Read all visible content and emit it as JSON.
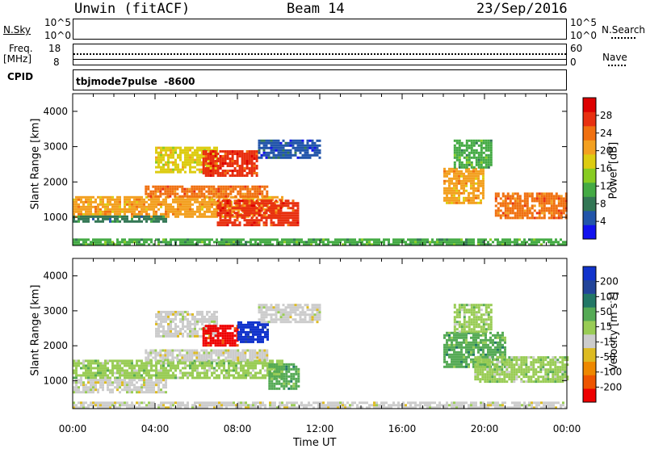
{
  "header": {
    "station": "Unwin (fitACF)",
    "beam": "Beam 14",
    "date": "23/Sep/2016"
  },
  "panels": {
    "nsky": {
      "label": "N.Sky",
      "ticks": [
        "10^5",
        "10^0"
      ],
      "right_label": "N.Search",
      "right_ticks": [
        "10^5",
        "10^0"
      ]
    },
    "freq": {
      "label_line1": "Freq.",
      "label_line2": "[MHz]",
      "ticks": [
        "18",
        "8"
      ],
      "right_label": "Nave",
      "right_ticks": [
        "60",
        "0"
      ]
    },
    "cpid": {
      "label": "CPID",
      "mode": "tbjmode7pulse",
      "code": "-8600"
    }
  },
  "colors": {
    "power_scale": [
      "#1111ee",
      "#2255aa",
      "#337755",
      "#44aa44",
      "#88cc22",
      "#ddcc11",
      "#f3a020",
      "#f07010",
      "#e83010",
      "#dd0000"
    ],
    "velocity_scale": [
      "#ee0000",
      "#ee5500",
      "#ee8800",
      "#ddbb22",
      "#cccccc",
      "#99cc55",
      "#55aa55",
      "#227766",
      "#224499",
      "#1133cc"
    ]
  },
  "chart_data": [
    {
      "type": "heatmap",
      "title": "Power",
      "xlabel": "Time UT",
      "ylabel": "Slant Range [km]",
      "x_ticks": [
        "00:00",
        "04:00",
        "08:00",
        "12:00",
        "16:00",
        "20:00",
        "00:00"
      ],
      "xlim_hours": [
        0,
        24
      ],
      "y_ticks": [
        1000,
        2000,
        3000,
        4000
      ],
      "ylim": [
        200,
        4500
      ],
      "colorbar": {
        "label": "Power [dB]",
        "ticks": [
          4,
          8,
          12,
          16,
          20,
          24,
          28
        ],
        "range": [
          0,
          32
        ]
      },
      "regions": [
        {
          "t0": 0.0,
          "t1": 10.2,
          "r0": 1050,
          "r1": 1600,
          "value": 22
        },
        {
          "t0": 0.0,
          "t1": 4.5,
          "r0": 900,
          "r1": 1050,
          "value": 8
        },
        {
          "t0": 3.5,
          "t1": 9.5,
          "r0": 1600,
          "r1": 1900,
          "value": 24
        },
        {
          "t0": 4.0,
          "t1": 7.0,
          "r0": 2300,
          "r1": 3000,
          "value": 16
        },
        {
          "t0": 6.3,
          "t1": 9.0,
          "r0": 2200,
          "r1": 2900,
          "value": 28
        },
        {
          "t0": 7.0,
          "t1": 11.0,
          "r0": 750,
          "r1": 1500,
          "value": 26
        },
        {
          "t0": 9.0,
          "t1": 12.0,
          "r0": 2700,
          "r1": 3200,
          "value": 6
        },
        {
          "t0": 18.0,
          "t1": 20.0,
          "r0": 1400,
          "r1": 2400,
          "value": 20
        },
        {
          "t0": 18.5,
          "t1": 20.3,
          "r0": 2400,
          "r1": 3200,
          "value": 10
        },
        {
          "t0": 20.5,
          "t1": 24.0,
          "r0": 1000,
          "r1": 1700,
          "value": 24
        },
        {
          "t0": 0.0,
          "t1": 24.0,
          "r0": 200,
          "r1": 400,
          "value": 12
        }
      ]
    },
    {
      "type": "heatmap",
      "title": "Velocity",
      "xlabel": "Time UT",
      "ylabel": "Slant Range [km]",
      "x_ticks": [
        "00:00",
        "04:00",
        "08:00",
        "12:00",
        "16:00",
        "20:00",
        "00:00"
      ],
      "xlim_hours": [
        0,
        24
      ],
      "y_ticks": [
        1000,
        2000,
        3000,
        4000
      ],
      "ylim": [
        200,
        4500
      ],
      "colorbar": {
        "label": "Velocity [m s^-1]",
        "ticks": [
          200,
          100,
          50,
          15,
          -15,
          -50,
          -100,
          -200
        ],
        "range": [
          -250,
          250
        ]
      },
      "regions": [
        {
          "t0": 0.0,
          "t1": 10.2,
          "r0": 1050,
          "r1": 1600,
          "value": 0
        },
        {
          "t0": 0.0,
          "t1": 4.5,
          "r0": 700,
          "r1": 1050,
          "value": -20
        },
        {
          "t0": 3.5,
          "t1": 9.5,
          "r0": 1600,
          "r1": 1900,
          "value": -20
        },
        {
          "t0": 4.0,
          "t1": 7.0,
          "r0": 2300,
          "r1": 3000,
          "value": -30
        },
        {
          "t0": 6.3,
          "t1": 8.0,
          "r0": 2000,
          "r1": 2600,
          "value": -220
        },
        {
          "t0": 8.0,
          "t1": 9.5,
          "r0": 2100,
          "r1": 2700,
          "value": 220
        },
        {
          "t0": 9.5,
          "t1": 11.0,
          "r0": 750,
          "r1": 1500,
          "value": 50
        },
        {
          "t0": 9.0,
          "t1": 12.0,
          "r0": 2700,
          "r1": 3200,
          "value": -20
        },
        {
          "t0": 18.0,
          "t1": 21.0,
          "r0": 1400,
          "r1": 2400,
          "value": 60
        },
        {
          "t0": 18.5,
          "t1": 20.3,
          "r0": 2400,
          "r1": 3200,
          "value": 40
        },
        {
          "t0": 19.5,
          "t1": 24.0,
          "r0": 1000,
          "r1": 1700,
          "value": 0
        },
        {
          "t0": 0.0,
          "t1": 24.0,
          "r0": 200,
          "r1": 400,
          "value": -40
        }
      ]
    }
  ]
}
